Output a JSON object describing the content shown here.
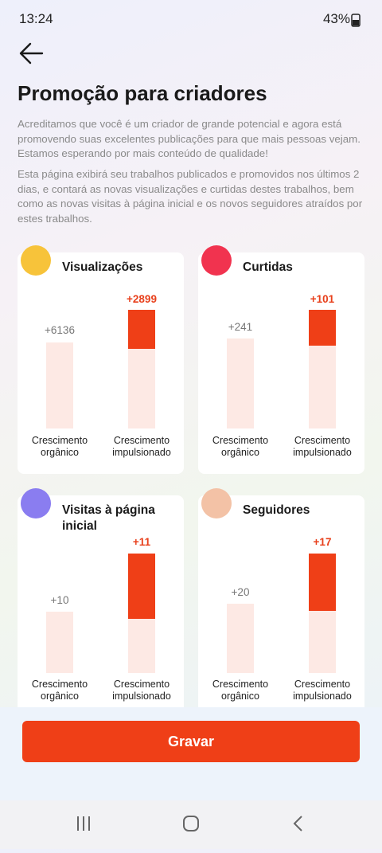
{
  "status_bar": {
    "time": "13:24",
    "battery": "43%"
  },
  "header": {
    "title": "Promoção para criadores",
    "paragraphs": [
      "Acreditamos que você é um criador de grande potencial e agora está promovendo suas excelentes publicações para que mais pessoas vejam. Estamos esperando por mais conteúdo de qualidade!",
      "Esta página exibirá seu trabalhos publicados e promovidos nos últimos 2 dias, e contará as novas visualizações e curtidas destes trabalhos, bem como as novas visitas à página inicial e os novos seguidores atraídos por estes trabalhos."
    ]
  },
  "cards": [
    {
      "title": "Visualizações",
      "organic": {
        "value": "+6136",
        "label": "Crescimento orgânico"
      },
      "boosted": {
        "value": "+2899",
        "label": "Crescimento impulsionado"
      }
    },
    {
      "title": "Curtidas",
      "organic": {
        "value": "+241",
        "label": "Crescimento orgânico"
      },
      "boosted": {
        "value": "+101",
        "label": "Crescimento impulsionado"
      }
    },
    {
      "title": "Visitas à página inicial",
      "organic": {
        "value": "+10",
        "label": "Crescimento orgânico"
      },
      "boosted": {
        "value": "+11",
        "label": "Crescimento impulsionado"
      }
    },
    {
      "title": "Seguidores",
      "organic": {
        "value": "+20",
        "label": "Crescimento orgânico"
      },
      "boosted": {
        "value": "+17",
        "label": "Crescimento impulsionado"
      }
    }
  ],
  "button": {
    "label": "Gravar"
  }
}
